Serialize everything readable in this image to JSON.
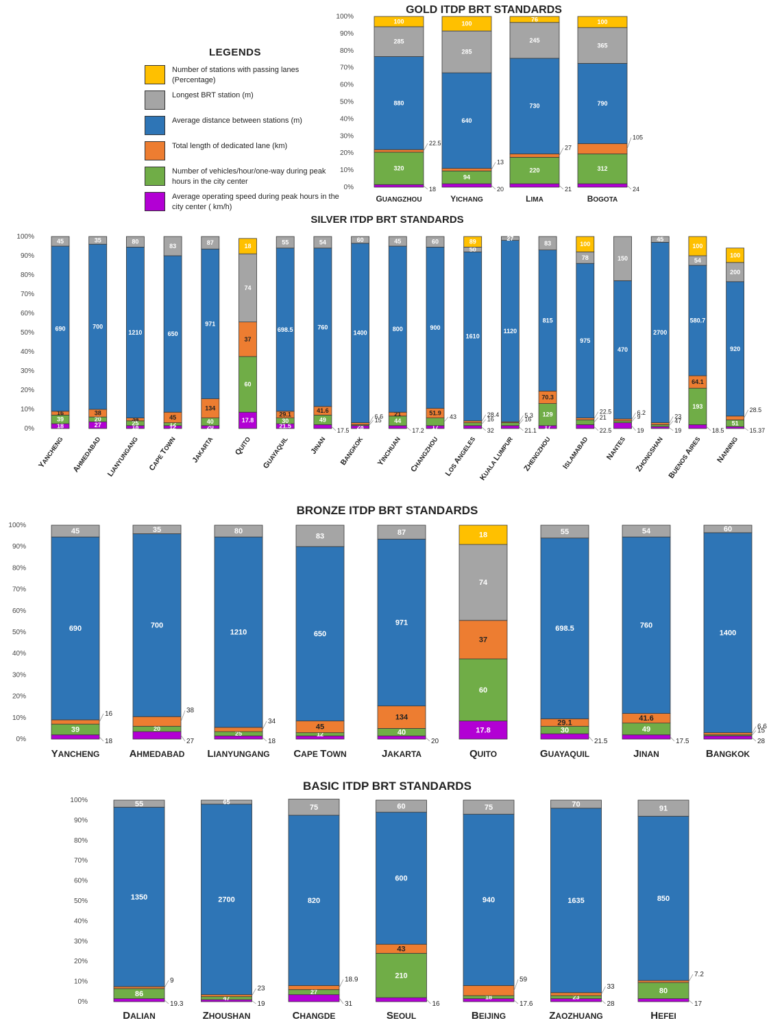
{
  "legend": {
    "title": "LEGENDS",
    "items": [
      {
        "key": "passing",
        "label": "Number of stations with passing lanes (Percentage)",
        "color": "#FFC000"
      },
      {
        "key": "longest",
        "label": "Longest BRT station (m)",
        "color": "#A5A5A5"
      },
      {
        "key": "distance",
        "label": "Average distance between stations (m)",
        "color": "#2E75B6"
      },
      {
        "key": "lane",
        "label": "Total length of dedicated lane (km)",
        "color": "#ED7D31"
      },
      {
        "key": "vehicles",
        "label": "Number of vehicles/hour/one-way during peak hours in the city center",
        "color": "#70AD47"
      },
      {
        "key": "speed",
        "label": "Average operating speed during peak hours in the city center ( km/h)",
        "color": "#B200D4"
      }
    ]
  },
  "chart_data": [
    {
      "id": "gold",
      "type": "stacked-bar-100",
      "title": "GOLD ITDP BRT STANDARDS",
      "yticks": [
        "0%",
        "10%",
        "20%",
        "30%",
        "40%",
        "50%",
        "60%",
        "70%",
        "80%",
        "90%",
        "100%"
      ],
      "categories": [
        "Guangzhou",
        "Yichang",
        "Lima",
        "Bogota"
      ],
      "labels": {
        "passing": [
          "100",
          "100",
          "76",
          "100"
        ],
        "longest": [
          "285",
          "285",
          "245",
          "365"
        ],
        "distance": [
          "880",
          "640",
          "730",
          "790"
        ],
        "lane": [
          "22.5",
          "13",
          "27",
          "105"
        ],
        "vehicles": [
          "320",
          "94",
          "220",
          "312"
        ],
        "speed": [
          "18",
          "20",
          "21",
          "24"
        ]
      },
      "heights": {
        "speed": [
          1.5,
          2,
          2,
          2
        ],
        "vehicles": [
          19,
          7.5,
          15.5,
          17.5
        ],
        "lane": [
          1.5,
          1.5,
          2,
          6
        ],
        "distance": [
          54.5,
          56,
          56,
          47
        ],
        "longest": [
          17.5,
          24.5,
          21,
          21
        ],
        "passing": [
          6,
          8.5,
          3.5,
          6.5
        ]
      }
    },
    {
      "id": "silver",
      "type": "stacked-bar-100",
      "title": "SILVER ITDP BRT STANDARDS",
      "yticks": [
        "0%",
        "10%",
        "20%",
        "30%",
        "40%",
        "50%",
        "60%",
        "70%",
        "80%",
        "90%",
        "100%"
      ],
      "categories": [
        "Yancheng",
        "Ahmedabad",
        "Lianyungang",
        "Cape Town",
        "Jakarta",
        "Quito",
        "Guayaquil",
        "Jinan",
        "Bangkok",
        "Yinchuan",
        "Changzhou",
        "Los Angeles",
        "Kuala Lumpur",
        "Zhengzhou",
        "Islamabad",
        "Nantes",
        "Zhongshan",
        "Buenos Aires",
        "Nanning"
      ],
      "labels": {
        "passing": [
          "",
          "",
          "",
          "",
          "",
          "18",
          "",
          "",
          "",
          "",
          "",
          "89",
          "",
          "",
          "100",
          "",
          "",
          "100",
          "100"
        ],
        "longest": [
          "45",
          "35",
          "80",
          "83",
          "87",
          "74",
          "55",
          "54",
          "60",
          "45",
          "60",
          "50",
          "27",
          "83",
          "78",
          "150",
          "45",
          "54",
          "200"
        ],
        "distance": [
          "690",
          "700",
          "1210",
          "650",
          "971",
          "",
          "698.5",
          "760",
          "1400",
          "800",
          "900",
          "1610",
          "1120",
          "815",
          "975",
          "470",
          "2700",
          "580.7",
          "920"
        ],
        "lane": [
          "16",
          "38",
          "34",
          "45",
          "134",
          "37",
          "29.1",
          "41.6",
          "6.6",
          "21",
          "51.9",
          "28.4",
          "5.3",
          "70.3",
          "22.5",
          "6.2",
          "23",
          "64.1",
          "28.5"
        ],
        "vehicles": [
          "39",
          "20",
          "25",
          "12",
          "40",
          "60",
          "30",
          "49",
          "15",
          "44",
          "43",
          "16",
          "16",
          "129",
          "21",
          "9",
          "47",
          "193",
          "51"
        ],
        "speed": [
          "18",
          "27",
          "18",
          "12",
          "20",
          "17.8",
          "21.5",
          "17.5",
          "28",
          "17.2",
          "17",
          "32",
          "21.1",
          "17",
          "22.5",
          "19",
          "19",
          "18.5",
          "15.37"
        ]
      },
      "heights": {
        "speed": [
          2.5,
          3.5,
          1.5,
          1.5,
          1.5,
          8.5,
          2.5,
          2,
          1.5,
          1.5,
          1.5,
          1.5,
          1.5,
          1.5,
          2,
          3,
          1,
          2,
          1
        ],
        "vehicles": [
          4.5,
          2.5,
          2.5,
          1.5,
          4,
          29,
          3,
          5,
          0.5,
          5,
          4,
          1.5,
          1.5,
          11.5,
          2.5,
          1,
          1,
          19,
          3.5
        ],
        "lane": [
          2,
          4,
          1.5,
          5.5,
          10,
          18,
          3.5,
          4.5,
          1,
          2,
          5,
          1,
          0.5,
          6.5,
          1,
          1,
          1,
          6.5,
          2
        ],
        "distance": [
          86,
          86,
          89,
          81.5,
          78,
          0,
          85,
          82.5,
          93.5,
          86.5,
          84,
          88,
          94.5,
          73.5,
          80.5,
          72,
          94,
          57.5,
          70
        ],
        "longest": [
          5,
          4,
          5.5,
          10,
          6.5,
          35.5,
          6,
          6,
          3.5,
          5,
          5.5,
          2.5,
          2,
          7,
          6,
          23,
          3,
          5,
          10
        ],
        "passing": [
          0,
          0,
          0,
          0,
          0,
          8,
          0,
          0,
          0,
          0,
          0,
          5.5,
          0,
          0,
          8,
          0,
          0,
          10,
          7.5
        ]
      }
    },
    {
      "id": "bronze",
      "type": "stacked-bar-100",
      "title": "BRONZE ITDP BRT STANDARDS",
      "yticks": [
        "0%",
        "10%",
        "20%",
        "30%",
        "40%",
        "50%",
        "60%",
        "70%",
        "80%",
        "90%",
        "100%"
      ],
      "categories": [
        "Yancheng",
        "Ahmedabad",
        "Lianyungang",
        "Cape Town",
        "Jakarta",
        "Quito",
        "Guayaquil",
        "Jinan",
        "Bangkok"
      ],
      "labels": {
        "passing": [
          "",
          "",
          "",
          "",
          "",
          "18",
          "",
          "",
          ""
        ],
        "longest": [
          "45",
          "35",
          "80",
          "83",
          "87",
          "74",
          "55",
          "54",
          "60"
        ],
        "distance": [
          "690",
          "700",
          "1210",
          "650",
          "971",
          "",
          "698.5",
          "760",
          "1400"
        ],
        "lane": [
          "16",
          "38",
          "34",
          "45",
          "134",
          "37",
          "29.1",
          "41.6",
          "6.6"
        ],
        "vehicles": [
          "39",
          "20",
          "25",
          "12",
          "40",
          "60",
          "30",
          "49",
          "15"
        ],
        "speed": [
          "18",
          "27",
          "18",
          "",
          "20",
          "17.8",
          "21.5",
          "17.5",
          "28"
        ]
      },
      "heights": {
        "speed": [
          2,
          3.5,
          1.5,
          1.5,
          1.5,
          8.5,
          2.5,
          2,
          1.5
        ],
        "vehicles": [
          5,
          2.5,
          2,
          1.5,
          3.5,
          29,
          3.5,
          5.5,
          0.5
        ],
        "lane": [
          2,
          4.5,
          2,
          5.5,
          10.5,
          18,
          3.5,
          4.5,
          1
        ],
        "distance": [
          85.5,
          85.5,
          89,
          81.5,
          78,
          0,
          84.5,
          82.5,
          93.5
        ],
        "longest": [
          5.5,
          4,
          5.5,
          10,
          6.5,
          35.5,
          6,
          5.5,
          3.5
        ],
        "passing": [
          0,
          0,
          0,
          0,
          0,
          9,
          0,
          0,
          0
        ]
      }
    },
    {
      "id": "basic",
      "type": "stacked-bar-100",
      "title": "BASIC ITDP BRT STANDARDS",
      "yticks": [
        "0%",
        "10%",
        "20%",
        "30%",
        "40%",
        "50%",
        "60%",
        "70%",
        "80%",
        "90%",
        "100%"
      ],
      "categories": [
        "Dalian",
        "Zhoushan",
        "Changde",
        "Seoul",
        "Beijing",
        "Zaozhuang",
        "Hefei"
      ],
      "labels": {
        "passing": [
          "",
          "",
          "",
          "",
          "",
          "",
          ""
        ],
        "longest": [
          "55",
          "65",
          "75",
          "60",
          "75",
          "70",
          "91"
        ],
        "distance": [
          "1350",
          "2700",
          "820",
          "600",
          "940",
          "1635",
          "850"
        ],
        "lane": [
          "9",
          "23",
          "18.9",
          "43",
          "59",
          "33",
          "7.2"
        ],
        "vehicles": [
          "86",
          "47",
          "27",
          "210",
          "18",
          "23",
          "80"
        ],
        "speed": [
          "19.3",
          "19",
          "31",
          "16",
          "17.6",
          "28",
          "17"
        ]
      },
      "heights": {
        "speed": [
          1.5,
          1,
          3.5,
          2,
          1.5,
          1.5,
          1.5
        ],
        "vehicles": [
          5,
          1.5,
          2.5,
          22,
          1.5,
          1.5,
          8
        ],
        "lane": [
          1,
          1,
          2,
          4.5,
          5,
          1.5,
          1
        ],
        "distance": [
          89,
          94.5,
          84.5,
          65.5,
          85,
          91.5,
          81.5
        ],
        "longest": [
          3.5,
          2,
          8,
          6,
          7,
          4,
          8
        ],
        "passing": [
          0,
          0,
          0,
          0,
          0,
          0,
          0
        ]
      }
    }
  ]
}
